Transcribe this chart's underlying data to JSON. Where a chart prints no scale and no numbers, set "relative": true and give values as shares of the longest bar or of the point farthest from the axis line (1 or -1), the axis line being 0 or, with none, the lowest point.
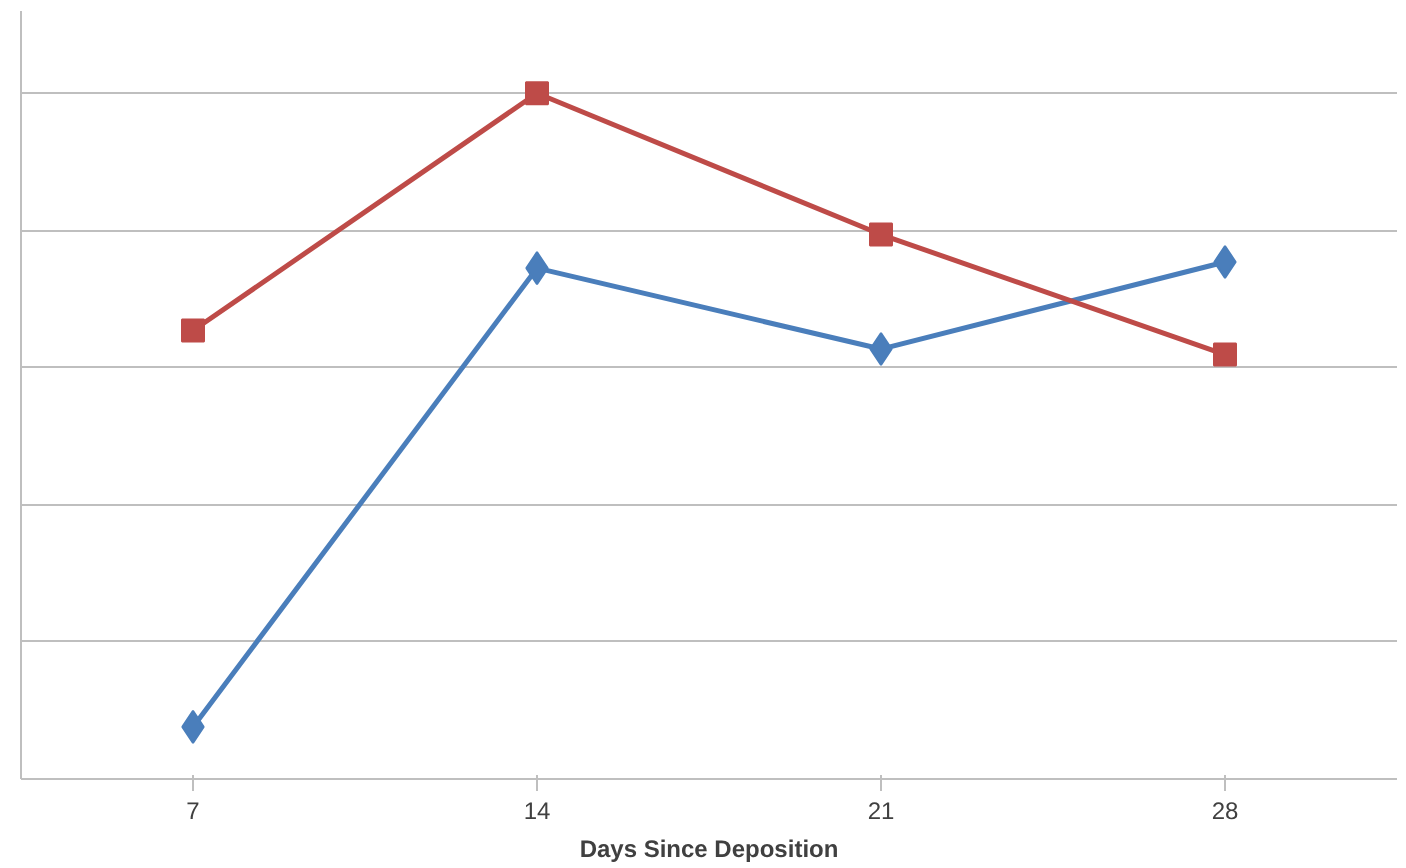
{
  "chart_data": {
    "type": "line",
    "relative": true,
    "xlabel": "Days Since Deposition",
    "categories": [
      "7",
      "14",
      "21",
      "28"
    ],
    "series": [
      {
        "color": "#4a7ebb",
        "marker": "diamond",
        "values": [
          0.076,
          0.745,
          0.627,
          0.754
        ]
      },
      {
        "color": "#be4b48",
        "marker": "square",
        "values": [
          0.654,
          1,
          0.794,
          0.619
        ]
      }
    ],
    "grid": "y",
    "line_style": "solid"
  }
}
